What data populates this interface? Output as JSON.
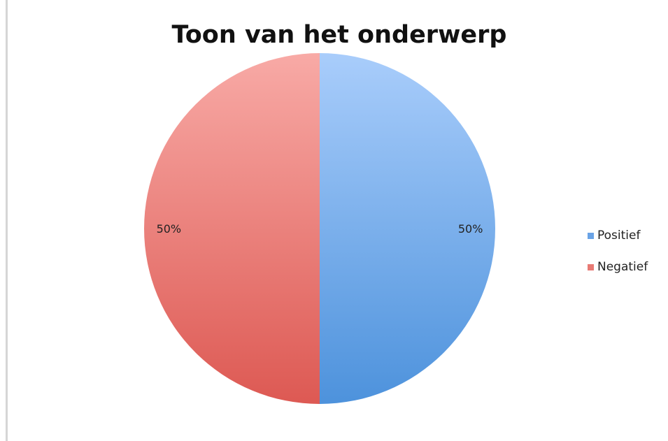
{
  "chart_data": {
    "type": "pie",
    "title": "Toon van het onderwerp",
    "categories": [
      "Positief",
      "Negatief"
    ],
    "values": [
      50,
      50
    ],
    "data_labels": [
      "50%",
      "50%"
    ],
    "colors": [
      "#6aa3e6",
      "#e87a74"
    ],
    "gradient_light": [
      "#a9cdfb",
      "#f8aaa6"
    ],
    "gradient_dark": [
      "#4d92dc",
      "#dd5953"
    ],
    "legend_position": "right",
    "start_angle_deg": 0,
    "direction": "clockwise"
  }
}
